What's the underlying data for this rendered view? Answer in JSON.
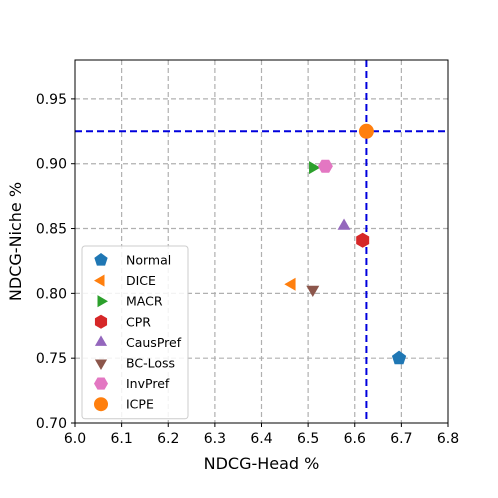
{
  "chart_data": {
    "type": "scatter",
    "xlabel": "NDCG-Head %",
    "ylabel": "NDCG-Niche %",
    "xlim": [
      6.0,
      6.8
    ],
    "ylim": [
      0.7,
      0.98
    ],
    "xticks": [
      6.0,
      6.1,
      6.2,
      6.3,
      6.4,
      6.5,
      6.6,
      6.7,
      6.8
    ],
    "xtick_labels": [
      "6.0",
      "6.1",
      "6.2",
      "6.3",
      "6.4",
      "6.5",
      "6.6",
      "6.7",
      "6.8"
    ],
    "yticks": [
      0.7,
      0.75,
      0.8,
      0.85,
      0.9,
      0.95
    ],
    "ytick_labels": [
      "0.70",
      "0.75",
      "0.80",
      "0.85",
      "0.90",
      "0.95"
    ],
    "grid": true,
    "legend_position": "lower-left",
    "reference_lines": {
      "x": 6.625,
      "y": 0.925,
      "color": "#0000dd",
      "style": "dashed"
    },
    "series": [
      {
        "name": "Normal",
        "x": 6.695,
        "y": 0.75,
        "marker": "pentagon",
        "color": "#1f77b4"
      },
      {
        "name": "DICE",
        "x": 6.465,
        "y": 0.807,
        "marker": "triangle-left",
        "color": "#ff7f0e"
      },
      {
        "name": "MACR",
        "x": 6.51,
        "y": 0.897,
        "marker": "triangle-right",
        "color": "#2ca02c"
      },
      {
        "name": "CPR",
        "x": 6.617,
        "y": 0.841,
        "marker": "hexagon",
        "color": "#d62728"
      },
      {
        "name": "CausPref",
        "x": 6.577,
        "y": 0.852,
        "marker": "triangle-up",
        "color": "#9467bd"
      },
      {
        "name": "BC-Loss",
        "x": 6.51,
        "y": 0.803,
        "marker": "triangle-down",
        "color": "#8c564b"
      },
      {
        "name": "InvPref",
        "x": 6.537,
        "y": 0.898,
        "marker": "hexagon-flat",
        "color": "#e377c2"
      },
      {
        "name": "ICPE",
        "x": 6.625,
        "y": 0.925,
        "marker": "circle",
        "color": "#ff7f0e"
      }
    ]
  }
}
